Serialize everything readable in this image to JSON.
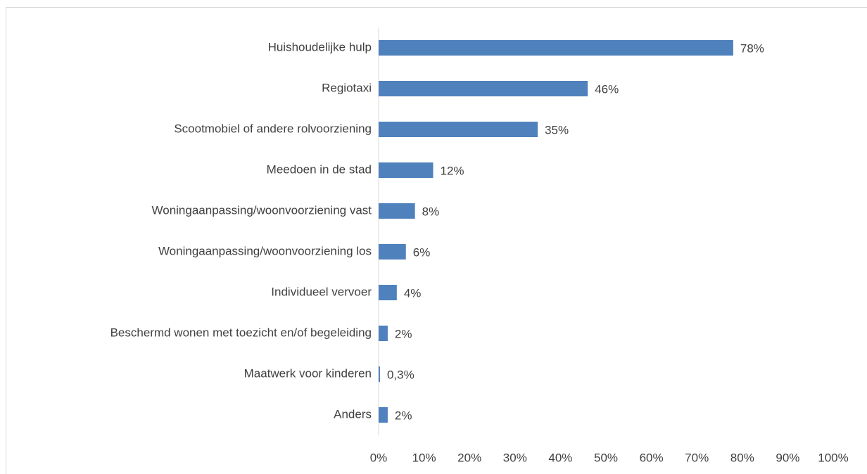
{
  "chart_data": {
    "type": "barh",
    "categories": [
      "Huishoudelijke hulp",
      "Regiotaxi",
      "Scootmobiel of andere rolvoorziening",
      "Meedoen in de stad",
      "Woningaanpassing/woonvoorziening vast",
      "Woningaanpassing/woonvoorziening los",
      "Individueel vervoer",
      "Beschermd wonen met toezicht en/of begeleiding",
      "Maatwerk voor kinderen",
      "Anders"
    ],
    "values": [
      78,
      46,
      35,
      12,
      8,
      6,
      4,
      2,
      0.3,
      2
    ],
    "value_labels": [
      "78%",
      "46%",
      "35%",
      "12%",
      "8%",
      "6%",
      "4%",
      "2%",
      "0,3%",
      "2%"
    ],
    "color": "#4f81bd",
    "xlim": [
      0,
      100
    ],
    "xticks": [
      {
        "value": 0,
        "label": "0%"
      },
      {
        "value": 10,
        "label": "10%"
      },
      {
        "value": 20,
        "label": "20%"
      },
      {
        "value": 30,
        "label": "30%"
      },
      {
        "value": 40,
        "label": "40%"
      },
      {
        "value": 50,
        "label": "50%"
      },
      {
        "value": 60,
        "label": "60%"
      },
      {
        "value": 70,
        "label": "70%"
      },
      {
        "value": 80,
        "label": "80%"
      },
      {
        "value": 90,
        "label": "90%"
      },
      {
        "value": 100,
        "label": "100%"
      }
    ],
    "grid": false
  }
}
